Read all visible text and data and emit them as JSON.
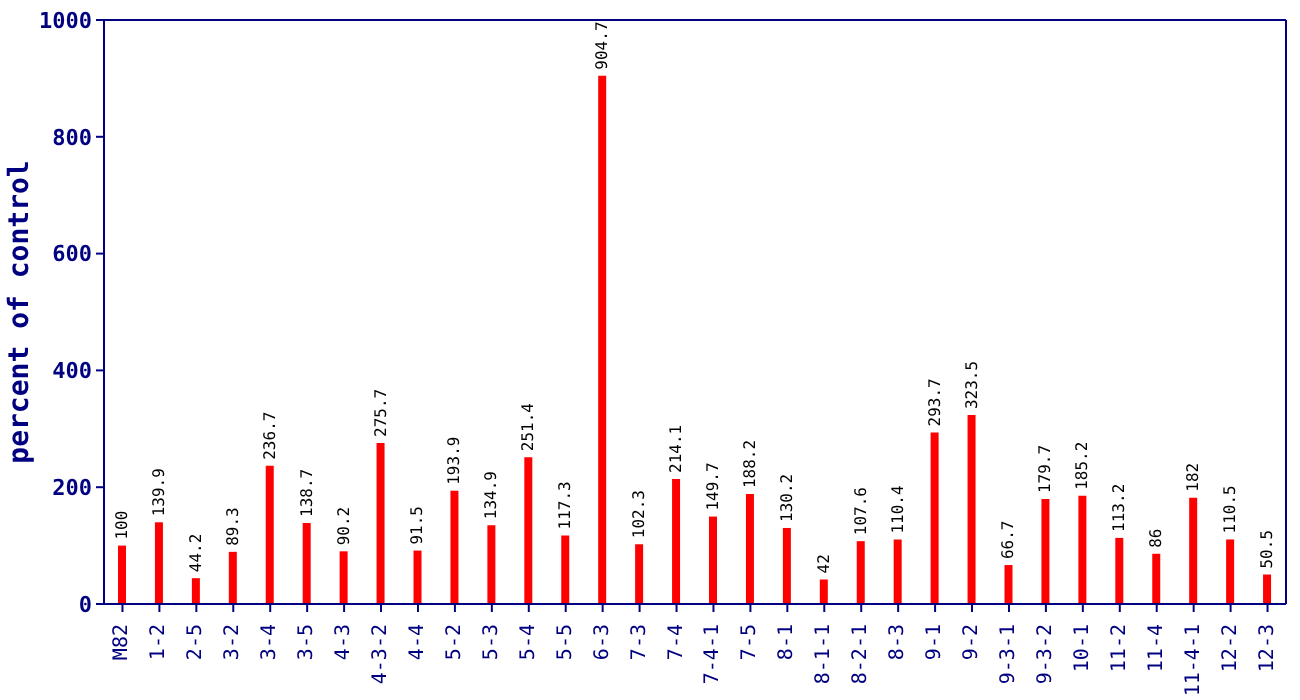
{
  "chart_data": {
    "type": "bar",
    "ylabel": "percent of control",
    "categories": [
      "M82",
      "1-2",
      "2-5",
      "3-2",
      "3-4",
      "3-5",
      "4-3",
      "4-3-2",
      "4-4",
      "5-2",
      "5-3",
      "5-4",
      "5-5",
      "6-3",
      "7-3",
      "7-4",
      "7-4-1",
      "7-5",
      "8-1",
      "8-1-1",
      "8-2-1",
      "8-3",
      "9-1",
      "9-2",
      "9-3-1",
      "9-3-2",
      "10-1",
      "11-2",
      "11-4",
      "11-4-1",
      "12-2",
      "12-3"
    ],
    "values": [
      100,
      139.9,
      44.2,
      89.3,
      236.7,
      138.7,
      90.2,
      275.7,
      91.5,
      193.9,
      134.9,
      251.4,
      117.3,
      904.7,
      102.3,
      214.1,
      149.7,
      188.2,
      130.2,
      42,
      107.6,
      110.4,
      293.7,
      323.5,
      66.7,
      179.7,
      185.2,
      113.2,
      86,
      182,
      110.5,
      50.5
    ],
    "color": "#ff0000",
    "ylim": [
      0,
      1000
    ],
    "yticks": [
      0,
      200,
      400,
      600,
      800,
      1000
    ],
    "data_labels": true,
    "grid": false
  }
}
